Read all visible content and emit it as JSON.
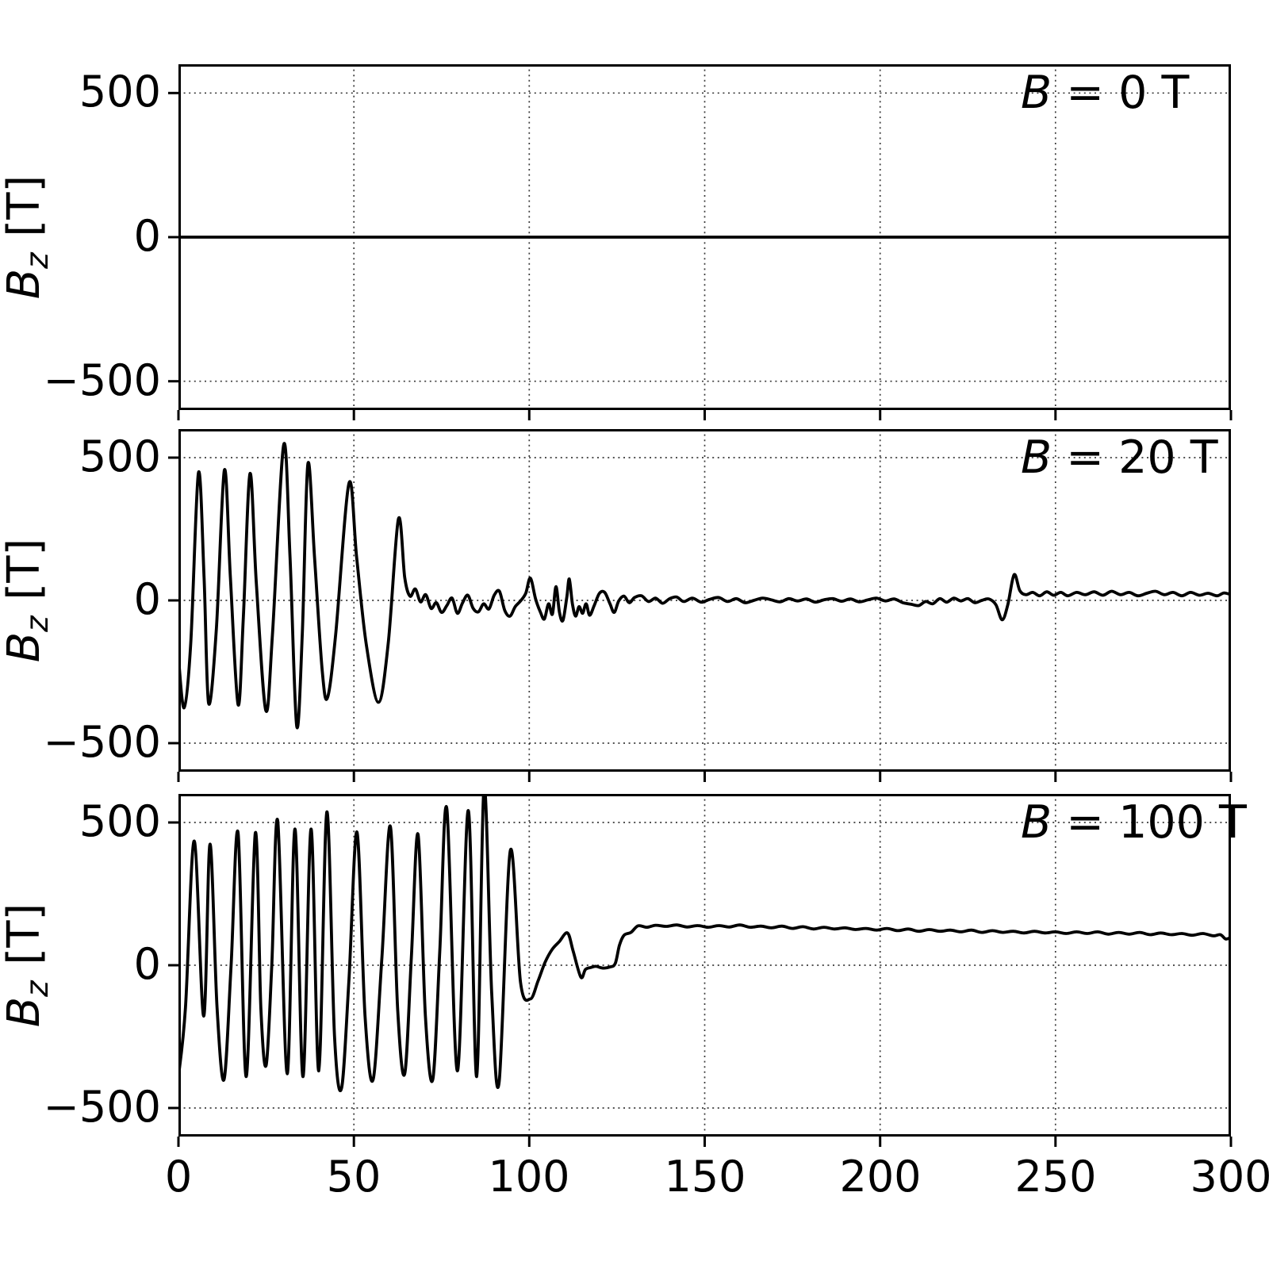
{
  "chart_data": {
    "type": "line",
    "title": "",
    "xlabel": "",
    "ylabel_var": "B",
    "ylabel_sub": "z",
    "ylabel_unit": "[T]",
    "xlim": [
      0,
      300
    ],
    "ylim": [
      -600,
      600
    ],
    "xticks": [
      0,
      50,
      100,
      150,
      200,
      250,
      300
    ],
    "yticks": [
      500,
      0,
      -500
    ],
    "xtick_labels": [
      "0",
      "50",
      "100",
      "150",
      "200",
      "250",
      "300"
    ],
    "ytick_labels": [
      "500",
      "0",
      "−500"
    ],
    "grid": "dotted",
    "line_color": "#000000",
    "panels": [
      {
        "label_var": "B",
        "label_rest": " = 0 T",
        "points": [
          [
            0,
            0
          ],
          [
            300,
            0
          ]
        ]
      },
      {
        "label_var": "B",
        "label_rest": " = 20 T",
        "points": [
          [
            0,
            -200
          ],
          [
            1.6,
            -376
          ],
          [
            3.5,
            -150
          ],
          [
            5.7,
            447
          ],
          [
            7.3,
            80
          ],
          [
            8.6,
            -360
          ],
          [
            10.8,
            -100
          ],
          [
            13.1,
            456
          ],
          [
            14.8,
            80
          ],
          [
            17,
            -365
          ],
          [
            18.5,
            -60
          ],
          [
            20.4,
            444
          ],
          [
            22.2,
            60
          ],
          [
            24.9,
            -385
          ],
          [
            26.8,
            -120
          ],
          [
            30,
            545
          ],
          [
            31.8,
            150
          ],
          [
            33.7,
            -440
          ],
          [
            35.3,
            -120
          ],
          [
            36.9,
            478
          ],
          [
            38.8,
            150
          ],
          [
            41,
            -250
          ],
          [
            42.5,
            -340
          ],
          [
            44.8,
            -120
          ],
          [
            48.6,
            410
          ],
          [
            50.8,
            150
          ],
          [
            53.5,
            -150
          ],
          [
            57,
            -357
          ],
          [
            59.8,
            -150
          ],
          [
            62.7,
            285
          ],
          [
            64.5,
            80
          ],
          [
            66,
            15
          ],
          [
            67.5,
            40
          ],
          [
            69,
            -5
          ],
          [
            70.5,
            20
          ],
          [
            72,
            -28
          ],
          [
            73.5,
            -8
          ],
          [
            75,
            -42
          ],
          [
            76.5,
            -18
          ],
          [
            78,
            8
          ],
          [
            79.5,
            -45
          ],
          [
            81,
            -8
          ],
          [
            82.5,
            18
          ],
          [
            84,
            -28
          ],
          [
            85.5,
            -40
          ],
          [
            87,
            -12
          ],
          [
            88.5,
            -30
          ],
          [
            90,
            18
          ],
          [
            91.5,
            32
          ],
          [
            93,
            -35
          ],
          [
            94.5,
            -55
          ],
          [
            96,
            -22
          ],
          [
            97.5,
            -2
          ],
          [
            99,
            25
          ],
          [
            100.3,
            78
          ],
          [
            101.8,
            5
          ],
          [
            103.2,
            -42
          ],
          [
            104.3,
            -65
          ],
          [
            105.5,
            -12
          ],
          [
            106.6,
            -48
          ],
          [
            107.6,
            48
          ],
          [
            108.6,
            -42
          ],
          [
            109.6,
            -70
          ],
          [
            110.7,
            12
          ],
          [
            111.4,
            75
          ],
          [
            112.3,
            -12
          ],
          [
            113.2,
            -55
          ],
          [
            114.2,
            -22
          ],
          [
            115.2,
            -45
          ],
          [
            116.2,
            -12
          ],
          [
            117.2,
            -52
          ],
          [
            118.5,
            -18
          ],
          [
            120,
            25
          ],
          [
            121.5,
            28
          ],
          [
            123,
            -12
          ],
          [
            124.2,
            -42
          ],
          [
            125.5,
            -2
          ],
          [
            127,
            15
          ],
          [
            128.5,
            -8
          ],
          [
            130,
            10
          ],
          [
            132,
            16
          ],
          [
            134,
            -4
          ],
          [
            136,
            8
          ],
          [
            138,
            -10
          ],
          [
            140,
            6
          ],
          [
            142,
            12
          ],
          [
            144,
            -4
          ],
          [
            146.5,
            8
          ],
          [
            149,
            -6
          ],
          [
            151.5,
            4
          ],
          [
            154,
            10
          ],
          [
            156.5,
            -4
          ],
          [
            159,
            6
          ],
          [
            161.5,
            -8
          ],
          [
            164,
            0
          ],
          [
            166.5,
            8
          ],
          [
            169,
            2
          ],
          [
            171.5,
            -5
          ],
          [
            174,
            6
          ],
          [
            176.5,
            -2
          ],
          [
            179,
            5
          ],
          [
            181.5,
            -6
          ],
          [
            184,
            2
          ],
          [
            186.5,
            6
          ],
          [
            189,
            -3
          ],
          [
            191.5,
            5
          ],
          [
            194,
            -5
          ],
          [
            196.5,
            2
          ],
          [
            199,
            8
          ],
          [
            201.5,
            -2
          ],
          [
            204,
            5
          ],
          [
            206.5,
            -8
          ],
          [
            209,
            -14
          ],
          [
            211,
            -18
          ],
          [
            213,
            -4
          ],
          [
            215,
            -12
          ],
          [
            217,
            6
          ],
          [
            219,
            -6
          ],
          [
            221,
            8
          ],
          [
            223,
            -2
          ],
          [
            225,
            6
          ],
          [
            227,
            -8
          ],
          [
            229,
            0
          ],
          [
            231,
            5
          ],
          [
            233,
            -15
          ],
          [
            234.8,
            -68
          ],
          [
            236.4,
            -15
          ],
          [
            238.2,
            90
          ],
          [
            239.8,
            35
          ],
          [
            241.5,
            20
          ],
          [
            243.5,
            28
          ],
          [
            245.5,
            16
          ],
          [
            247.5,
            30
          ],
          [
            249.5,
            18
          ],
          [
            251.5,
            28
          ],
          [
            253.5,
            16
          ],
          [
            256,
            28
          ],
          [
            258.5,
            20
          ],
          [
            261,
            30
          ],
          [
            263.5,
            18
          ],
          [
            266,
            32
          ],
          [
            268.5,
            20
          ],
          [
            271,
            28
          ],
          [
            273.5,
            16
          ],
          [
            276,
            25
          ],
          [
            278.5,
            32
          ],
          [
            281,
            20
          ],
          [
            283.5,
            28
          ],
          [
            286,
            16
          ],
          [
            288.5,
            28
          ],
          [
            291,
            18
          ],
          [
            293.5,
            25
          ],
          [
            296,
            16
          ],
          [
            298,
            26
          ],
          [
            300,
            20
          ]
        ]
      },
      {
        "label_var": "B",
        "label_rest": " = 100 T",
        "points": [
          [
            0,
            -390
          ],
          [
            2,
            -150
          ],
          [
            4.5,
            435
          ],
          [
            7.2,
            -178
          ],
          [
            9,
            424
          ],
          [
            11,
            -150
          ],
          [
            13,
            -400
          ],
          [
            15,
            0
          ],
          [
            17,
            463
          ],
          [
            19.3,
            -390
          ],
          [
            21.9,
            463
          ],
          [
            23.5,
            -150
          ],
          [
            25,
            -350
          ],
          [
            26.6,
            0
          ],
          [
            28.3,
            505
          ],
          [
            31,
            -380
          ],
          [
            33.2,
            477
          ],
          [
            35.5,
            -390
          ],
          [
            37.8,
            477
          ],
          [
            40,
            -370
          ],
          [
            42.3,
            537
          ],
          [
            44.5,
            -250
          ],
          [
            46.5,
            -430
          ],
          [
            48.6,
            -50
          ],
          [
            50.9,
            466
          ],
          [
            53.2,
            -180
          ],
          [
            55.5,
            -400
          ],
          [
            58,
            30
          ],
          [
            60.4,
            486
          ],
          [
            62.5,
            -160
          ],
          [
            64.5,
            -380
          ],
          [
            66.4,
            30
          ],
          [
            68.3,
            458
          ],
          [
            70.4,
            -180
          ],
          [
            72.5,
            -400
          ],
          [
            74.5,
            50
          ],
          [
            76.5,
            548
          ],
          [
            79.5,
            -370
          ],
          [
            82.6,
            542
          ],
          [
            85,
            -390
          ],
          [
            87.1,
            625
          ],
          [
            89.3,
            -100
          ],
          [
            91.4,
            -410
          ],
          [
            94.6,
            401
          ],
          [
            97.5,
            -60
          ],
          [
            100.3,
            -118
          ],
          [
            102.5,
            -55
          ],
          [
            104.5,
            10
          ],
          [
            106.5,
            55
          ],
          [
            108.5,
            82
          ],
          [
            110.9,
            113
          ],
          [
            112.5,
            50
          ],
          [
            114.7,
            -42
          ],
          [
            116,
            -15
          ],
          [
            117.5,
            -8
          ],
          [
            119,
            -4
          ],
          [
            121,
            -10
          ],
          [
            123,
            -6
          ],
          [
            124.5,
            6
          ],
          [
            125.7,
            70
          ],
          [
            127,
            105
          ],
          [
            129,
            115
          ],
          [
            131,
            138
          ],
          [
            133.5,
            133
          ],
          [
            136,
            140
          ],
          [
            139,
            136
          ],
          [
            142,
            141
          ],
          [
            145,
            134
          ],
          [
            148,
            139
          ],
          [
            151,
            133
          ],
          [
            154,
            139
          ],
          [
            157,
            134
          ],
          [
            160,
            141
          ],
          [
            163,
            133
          ],
          [
            166,
            137
          ],
          [
            169,
            131
          ],
          [
            172,
            137
          ],
          [
            175,
            129
          ],
          [
            178,
            135
          ],
          [
            181,
            127
          ],
          [
            184,
            133
          ],
          [
            187,
            127
          ],
          [
            190,
            131
          ],
          [
            193,
            125
          ],
          [
            196,
            129
          ],
          [
            199,
            123
          ],
          [
            202,
            129
          ],
          [
            205,
            121
          ],
          [
            208,
            127
          ],
          [
            211,
            119
          ],
          [
            214,
            125
          ],
          [
            217,
            119
          ],
          [
            220,
            123
          ],
          [
            223,
            117
          ],
          [
            226,
            123
          ],
          [
            229,
            115
          ],
          [
            232,
            121
          ],
          [
            235,
            115
          ],
          [
            238,
            119
          ],
          [
            241,
            113
          ],
          [
            244,
            119
          ],
          [
            247,
            113
          ],
          [
            250,
            117
          ],
          [
            253,
            111
          ],
          [
            256,
            117
          ],
          [
            259,
            111
          ],
          [
            262,
            117
          ],
          [
            265,
            109
          ],
          [
            268,
            115
          ],
          [
            271,
            109
          ],
          [
            274,
            115
          ],
          [
            277,
            107
          ],
          [
            280,
            113
          ],
          [
            283,
            107
          ],
          [
            286,
            111
          ],
          [
            289,
            105
          ],
          [
            292,
            111
          ],
          [
            295,
            103
          ],
          [
            297,
            107
          ],
          [
            298.5,
            92
          ],
          [
            300,
            98
          ]
        ]
      }
    ]
  }
}
